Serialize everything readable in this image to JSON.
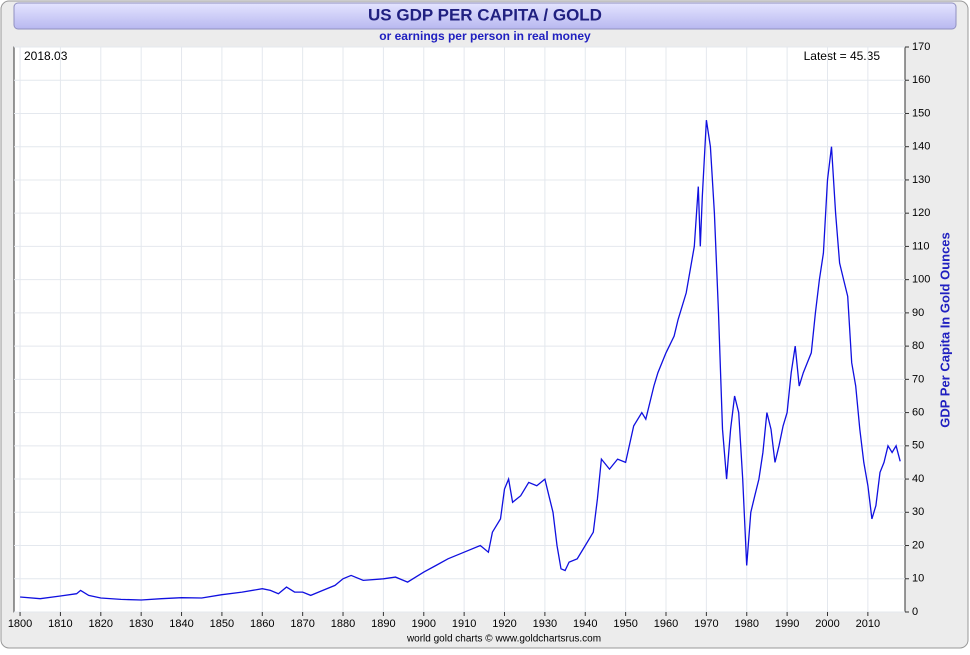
{
  "chart_data": {
    "type": "line",
    "title": "US GDP PER CAPITA / GOLD",
    "subtitle": "or earnings per person in real money",
    "y_label": "GDP Per Capita In Gold Ounces",
    "date_label": "2018.03",
    "latest_label": "Latest = 45.35",
    "footer": "world gold charts © www.goldchartsrus.com",
    "x": [
      1800,
      1805,
      1810,
      1814,
      1815,
      1817,
      1820,
      1825,
      1830,
      1835,
      1840,
      1845,
      1850,
      1855,
      1860,
      1862,
      1864,
      1866,
      1868,
      1870,
      1872,
      1875,
      1878,
      1880,
      1882,
      1885,
      1890,
      1893,
      1896,
      1900,
      1903,
      1906,
      1910,
      1914,
      1916,
      1917,
      1919,
      1920,
      1921,
      1922,
      1924,
      1926,
      1928,
      1930,
      1931,
      1932,
      1933,
      1934,
      1935,
      1936,
      1938,
      1940,
      1942,
      1943,
      1944,
      1946,
      1948,
      1950,
      1952,
      1954,
      1955,
      1957,
      1958,
      1960,
      1962,
      1963,
      1965,
      1967,
      1968,
      1968.5,
      1969,
      1970,
      1971,
      1972,
      1973,
      1974,
      1975,
      1976,
      1977,
      1978,
      1979,
      1980,
      1981,
      1982,
      1983,
      1984,
      1985,
      1986,
      1987,
      1988,
      1989,
      1990,
      1991,
      1992,
      1993,
      1994,
      1995,
      1996,
      1997,
      1998,
      1999,
      2000,
      2001,
      2002,
      2003,
      2004,
      2005,
      2006,
      2007,
      2008,
      2009,
      2010,
      2011,
      2012,
      2013,
      2014,
      2015,
      2016,
      2017,
      2018
    ],
    "series": [
      {
        "name": "GDP Per Capita / Gold",
        "color": "#1010e0",
        "values": [
          4.5,
          4.0,
          4.8,
          5.5,
          6.5,
          5,
          4.2,
          3.8,
          3.6,
          4,
          4.3,
          4.2,
          5.2,
          6,
          7,
          6.5,
          5.5,
          7.5,
          6,
          6,
          5,
          6.5,
          8,
          10,
          11,
          9.5,
          10,
          10.5,
          9,
          12,
          14,
          16,
          18,
          20,
          18,
          24,
          28,
          37,
          40,
          33,
          35,
          39,
          38,
          40,
          35,
          30,
          20,
          13,
          12.5,
          15,
          16,
          20,
          24,
          34,
          46,
          43,
          46,
          45,
          56,
          60,
          58,
          68,
          72,
          78,
          83,
          88,
          96,
          110,
          128,
          110,
          125,
          148,
          140,
          120,
          90,
          55,
          40,
          55,
          65,
          60,
          40,
          14,
          30,
          35,
          40,
          48,
          60,
          55,
          45,
          50,
          56,
          60,
          72,
          80,
          68,
          72,
          75,
          78,
          90,
          100,
          108,
          130,
          140,
          120,
          105,
          100,
          95,
          75,
          68,
          55,
          45,
          38,
          28,
          32,
          42,
          45,
          50,
          48,
          50,
          45.35
        ]
      }
    ],
    "xlim": [
      1798.5,
      2019.2
    ],
    "xticks": [
      1800,
      1810,
      1820,
      1830,
      1840,
      1850,
      1860,
      1870,
      1880,
      1890,
      1900,
      1910,
      1920,
      1930,
      1940,
      1950,
      1960,
      1970,
      1980,
      1990,
      2000,
      2010
    ],
    "ylim": [
      0,
      170
    ],
    "yticks": [
      0,
      10,
      20,
      30,
      40,
      50,
      60,
      70,
      80,
      90,
      100,
      110,
      120,
      130,
      140,
      150,
      160,
      170
    ],
    "y_axis_side": "right",
    "grid": true
  }
}
